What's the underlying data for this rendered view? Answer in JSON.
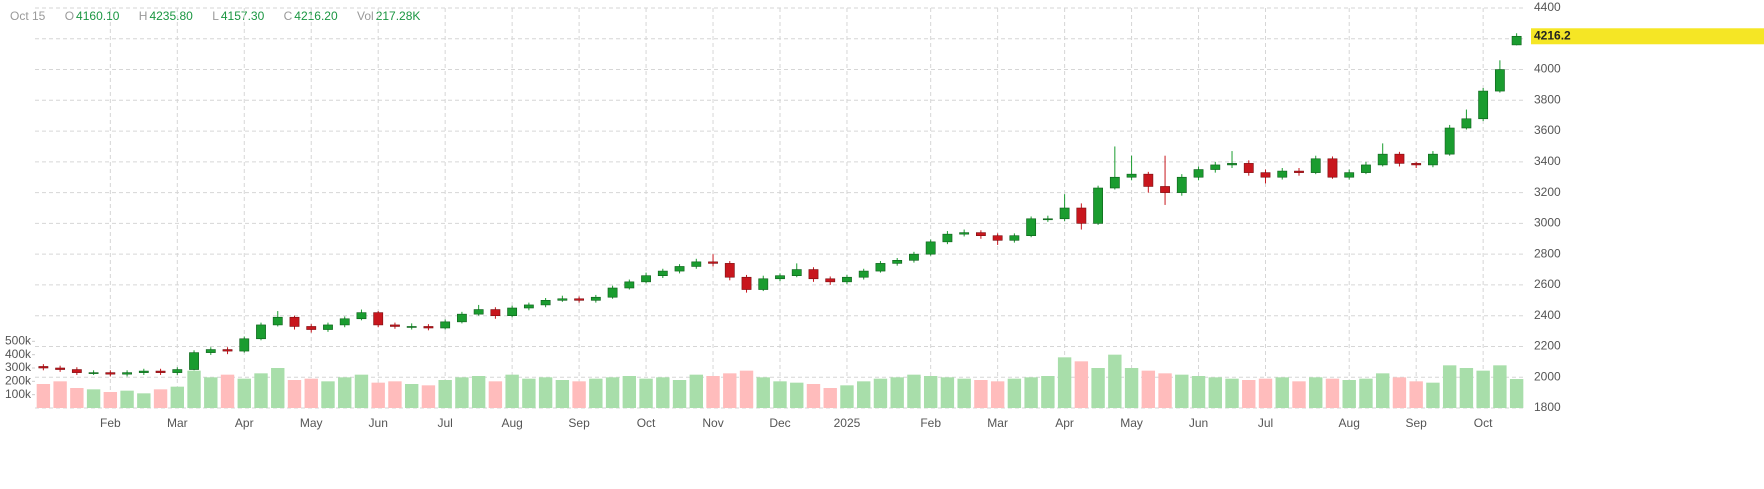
{
  "chart_data": {
    "type": "candlestick",
    "header": {
      "date": "Oct 15",
      "open_label": "O",
      "open": "4160.10",
      "high_label": "H",
      "high": "4235.80",
      "low_label": "L",
      "low": "4157.30",
      "close_label": "C",
      "close": "4216.20",
      "volume_label": "Vol",
      "volume": "217.28K"
    },
    "categories": [
      null,
      null,
      null,
      null,
      "Feb",
      null,
      null,
      null,
      "Mar",
      null,
      null,
      null,
      "Apr",
      null,
      null,
      null,
      "May",
      null,
      null,
      null,
      "Jun",
      null,
      null,
      null,
      "Jul",
      null,
      null,
      null,
      "Aug",
      null,
      null,
      null,
      "Sep",
      null,
      null,
      null,
      "Oct",
      null,
      null,
      null,
      "Nov",
      null,
      null,
      null,
      "Dec",
      null,
      null,
      null,
      "2025",
      null,
      null,
      null,
      null,
      "Feb",
      null,
      null,
      null,
      "Mar",
      null,
      null,
      null,
      "Apr",
      null,
      null,
      null,
      "May",
      null,
      null,
      null,
      "Jun",
      null,
      null,
      null,
      "Jul",
      null,
      null,
      null,
      null,
      "Aug",
      null,
      null,
      null,
      "Sep",
      null,
      null,
      null,
      "Oct",
      null,
      null
    ],
    "open": [
      2070,
      2060,
      2050,
      2030,
      2030,
      2020,
      2030,
      2040,
      2030,
      2050,
      2160,
      2180,
      2170,
      2250,
      2340,
      2390,
      2330,
      2310,
      2340,
      2380,
      2420,
      2340,
      2330,
      2330,
      2320,
      2360,
      2410,
      2440,
      2400,
      2450,
      2470,
      2500,
      2510,
      2500,
      2520,
      2580,
      2620,
      2660,
      2690,
      2720,
      2750,
      2740,
      2650,
      2570,
      2640,
      2660,
      2700,
      2640,
      2620,
      2650,
      2690,
      2740,
      2760,
      2800,
      2880,
      2930,
      2940,
      2920,
      2890,
      2920,
      3030,
      3030,
      3100,
      3000,
      3230,
      3300,
      3320,
      3240,
      3200,
      3300,
      3350,
      3380,
      3390,
      3330,
      3300,
      3340,
      3330,
      3420,
      3300,
      3330,
      3380,
      3450,
      3390,
      3380,
      3450,
      3620,
      3680,
      3860,
      4160.1
    ],
    "high": [
      2085,
      2075,
      2065,
      2045,
      2045,
      2045,
      2055,
      2055,
      2065,
      2175,
      2195,
      2195,
      2265,
      2355,
      2430,
      2400,
      2345,
      2355,
      2395,
      2440,
      2430,
      2355,
      2350,
      2345,
      2375,
      2425,
      2470,
      2455,
      2465,
      2485,
      2515,
      2530,
      2525,
      2535,
      2595,
      2635,
      2680,
      2705,
      2735,
      2770,
      2800,
      2755,
      2665,
      2660,
      2675,
      2740,
      2715,
      2655,
      2665,
      2705,
      2755,
      2775,
      2815,
      2895,
      2950,
      2960,
      2955,
      2935,
      2935,
      3045,
      3050,
      3190,
      3130,
      3245,
      3500,
      3440,
      3335,
      3440,
      3320,
      3370,
      3400,
      3470,
      3410,
      3350,
      3360,
      3360,
      3440,
      3435,
      3350,
      3400,
      3520,
      3465,
      3400,
      3470,
      3640,
      3740,
      3880,
      4060,
      4235.8
    ],
    "low": [
      2045,
      2035,
      2015,
      2015,
      2005,
      2005,
      2015,
      2015,
      2015,
      2045,
      2145,
      2150,
      2160,
      2240,
      2330,
      2310,
      2290,
      2295,
      2325,
      2370,
      2325,
      2315,
      2310,
      2305,
      2310,
      2350,
      2400,
      2380,
      2390,
      2435,
      2455,
      2490,
      2485,
      2485,
      2510,
      2570,
      2610,
      2645,
      2675,
      2705,
      2720,
      2630,
      2550,
      2560,
      2625,
      2650,
      2620,
      2600,
      2605,
      2635,
      2680,
      2725,
      2745,
      2790,
      2865,
      2915,
      2900,
      2860,
      2875,
      2910,
      3010,
      3015,
      2960,
      2990,
      3220,
      3280,
      3200,
      3120,
      3180,
      3280,
      3330,
      3360,
      3310,
      3260,
      3285,
      3310,
      3320,
      3290,
      3285,
      3320,
      3370,
      3370,
      3360,
      3365,
      3440,
      3610,
      3665,
      3850,
      4157.3
    ],
    "close": [
      2060,
      2050,
      2030,
      2030,
      2020,
      2030,
      2040,
      2030,
      2050,
      2160,
      2180,
      2170,
      2250,
      2340,
      2390,
      2330,
      2310,
      2340,
      2380,
      2420,
      2340,
      2330,
      2330,
      2320,
      2360,
      2410,
      2440,
      2400,
      2450,
      2470,
      2500,
      2510,
      2500,
      2520,
      2580,
      2620,
      2660,
      2690,
      2720,
      2750,
      2740,
      2650,
      2570,
      2640,
      2660,
      2700,
      2640,
      2620,
      2650,
      2690,
      2740,
      2760,
      2800,
      2880,
      2930,
      2940,
      2920,
      2890,
      2920,
      3030,
      3030,
      3100,
      3000,
      3230,
      3300,
      3320,
      3240,
      3200,
      3300,
      3350,
      3380,
      3390,
      3330,
      3300,
      3340,
      3330,
      3420,
      3300,
      3330,
      3380,
      3450,
      3390,
      3380,
      3450,
      3620,
      3680,
      3860,
      4000,
      4216.2
    ],
    "volume": [
      180000,
      200000,
      150000,
      140000,
      120000,
      130000,
      110000,
      140000,
      160000,
      280000,
      230000,
      250000,
      220000,
      260000,
      300000,
      210000,
      220000,
      200000,
      230000,
      250000,
      190000,
      200000,
      180000,
      170000,
      210000,
      230000,
      240000,
      200000,
      250000,
      220000,
      230000,
      210000,
      200000,
      220000,
      230000,
      240000,
      220000,
      230000,
      210000,
      250000,
      240000,
      260000,
      280000,
      230000,
      200000,
      190000,
      180000,
      150000,
      170000,
      200000,
      220000,
      230000,
      250000,
      240000,
      230000,
      220000,
      210000,
      200000,
      220000,
      230000,
      240000,
      380000,
      350000,
      300000,
      400000,
      300000,
      280000,
      260000,
      250000,
      240000,
      230000,
      220000,
      210000,
      220000,
      230000,
      200000,
      230000,
      220000,
      210000,
      220000,
      260000,
      230000,
      200000,
      190000,
      320000,
      300000,
      280000,
      320000,
      217280
    ],
    "ylim": [
      1800,
      4400
    ],
    "yticks": [
      1800,
      2000,
      2200,
      2400,
      2600,
      2800,
      3000,
      3200,
      3400,
      3600,
      3800,
      4000,
      4200,
      4400
    ],
    "volume_ylim": [
      0,
      3000000
    ],
    "volume_yticks": [
      {
        "value": 100000,
        "label": "100k"
      },
      {
        "value": 200000,
        "label": "200k"
      },
      {
        "value": 300000,
        "label": "300k"
      },
      {
        "value": 400000,
        "label": "400k"
      },
      {
        "value": 500000,
        "label": "500k"
      }
    ],
    "grid": true,
    "up_color": "#1a9c2f",
    "down_color": "#c8161d",
    "volume_up_color": "#a8deaa",
    "volume_down_color": "#ffbcbc",
    "last_price_color": "#f5e625"
  }
}
